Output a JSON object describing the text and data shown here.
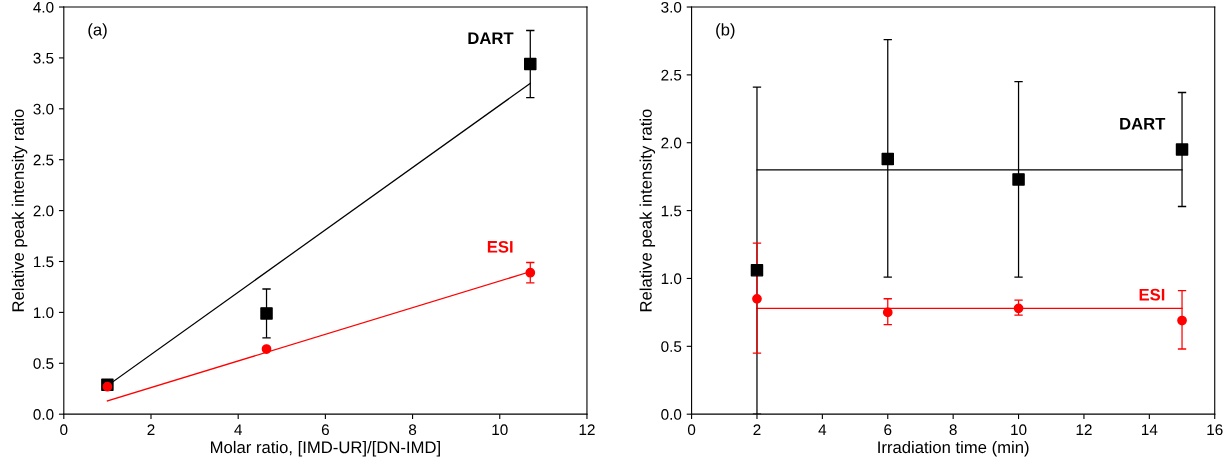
{
  "chart_data": [
    {
      "type": "scatter",
      "title": "(a)",
      "xlabel": "Molar ratio, [IMD-UR]/[DN-IMD]",
      "ylabel": "Relative peak intensity ratio",
      "xlim": [
        0,
        12
      ],
      "xticks": [
        0,
        2,
        4,
        6,
        8,
        10,
        12
      ],
      "ylim": [
        0,
        4
      ],
      "yticks": [
        {
          "value": 0,
          "label": "0.0"
        },
        0.5,
        {
          "value": 1,
          "label": "1.0"
        },
        1.5,
        {
          "value": 2,
          "label": "2.0"
        },
        2.5,
        {
          "value": 3,
          "label": "3.0"
        },
        3.5,
        {
          "value": 4,
          "label": "4.0"
        }
      ],
      "grid": false,
      "legend": false,
      "series": [
        {
          "type": "line",
          "color": "#000000",
          "x": [
            1.0,
            10.7
          ],
          "values": [
            0.28,
            3.25
          ],
          "marker": "none"
        },
        {
          "type": "line",
          "color": "#ff0000",
          "x": [
            1.0,
            10.7
          ],
          "values": [
            0.13,
            1.4
          ],
          "marker": "none"
        },
        {
          "name": "DART",
          "color": "#000000",
          "marker": "square",
          "x": [
            1.0,
            4.65,
            10.7
          ],
          "values": [
            0.29,
            0.99,
            3.44
          ],
          "errors": [
            [
              0.26,
              0.32
            ],
            [
              0.75,
              1.23
            ],
            [
              3.11,
              3.77
            ]
          ]
        },
        {
          "name": "ESI",
          "color": "#ff0000",
          "marker": "circle",
          "x": [
            1.0,
            4.65,
            10.7
          ],
          "values": [
            0.27,
            0.64,
            1.39
          ],
          "errors": [
            null,
            null,
            [
              1.29,
              1.49
            ]
          ]
        }
      ]
    },
    {
      "type": "scatter",
      "title": "(b)",
      "xlabel": "Irradiation time (min)",
      "ylabel": "Relative peak intensity ratio",
      "xlim": [
        0,
        16
      ],
      "xticks": [
        0,
        2,
        4,
        6,
        8,
        10,
        12,
        14,
        16
      ],
      "ylim": [
        0,
        3
      ],
      "yticks": [
        {
          "value": 0,
          "label": "0.0"
        },
        0.5,
        {
          "value": 1,
          "label": "1.0"
        },
        1.5,
        {
          "value": 2,
          "label": "2.0"
        },
        2.5,
        {
          "value": 3,
          "label": "3.0"
        }
      ],
      "grid": false,
      "legend": false,
      "series": [
        {
          "type": "line",
          "color": "#000000",
          "x": [
            2,
            15
          ],
          "values": [
            1.8,
            1.8
          ],
          "marker": "none"
        },
        {
          "type": "line",
          "color": "#ff0000",
          "x": [
            2,
            15
          ],
          "values": [
            0.78,
            0.78
          ],
          "marker": "none"
        },
        {
          "name": "DART",
          "color": "#000000",
          "marker": "square",
          "x": [
            2,
            6,
            10,
            15
          ],
          "values": [
            1.06,
            1.88,
            1.73,
            1.95
          ],
          "errors": [
            [
              0.0,
              2.41
            ],
            [
              1.01,
              2.76
            ],
            [
              1.01,
              2.45
            ],
            [
              1.53,
              2.37
            ]
          ]
        },
        {
          "name": "ESI",
          "color": "#ff0000",
          "marker": "circle",
          "x": [
            2,
            6,
            10,
            15
          ],
          "values": [
            0.85,
            0.75,
            0.78,
            0.69
          ],
          "errors": [
            [
              0.45,
              1.26
            ],
            [
              0.66,
              0.85
            ],
            [
              0.73,
              0.84
            ],
            [
              0.48,
              0.91
            ]
          ]
        }
      ]
    }
  ]
}
